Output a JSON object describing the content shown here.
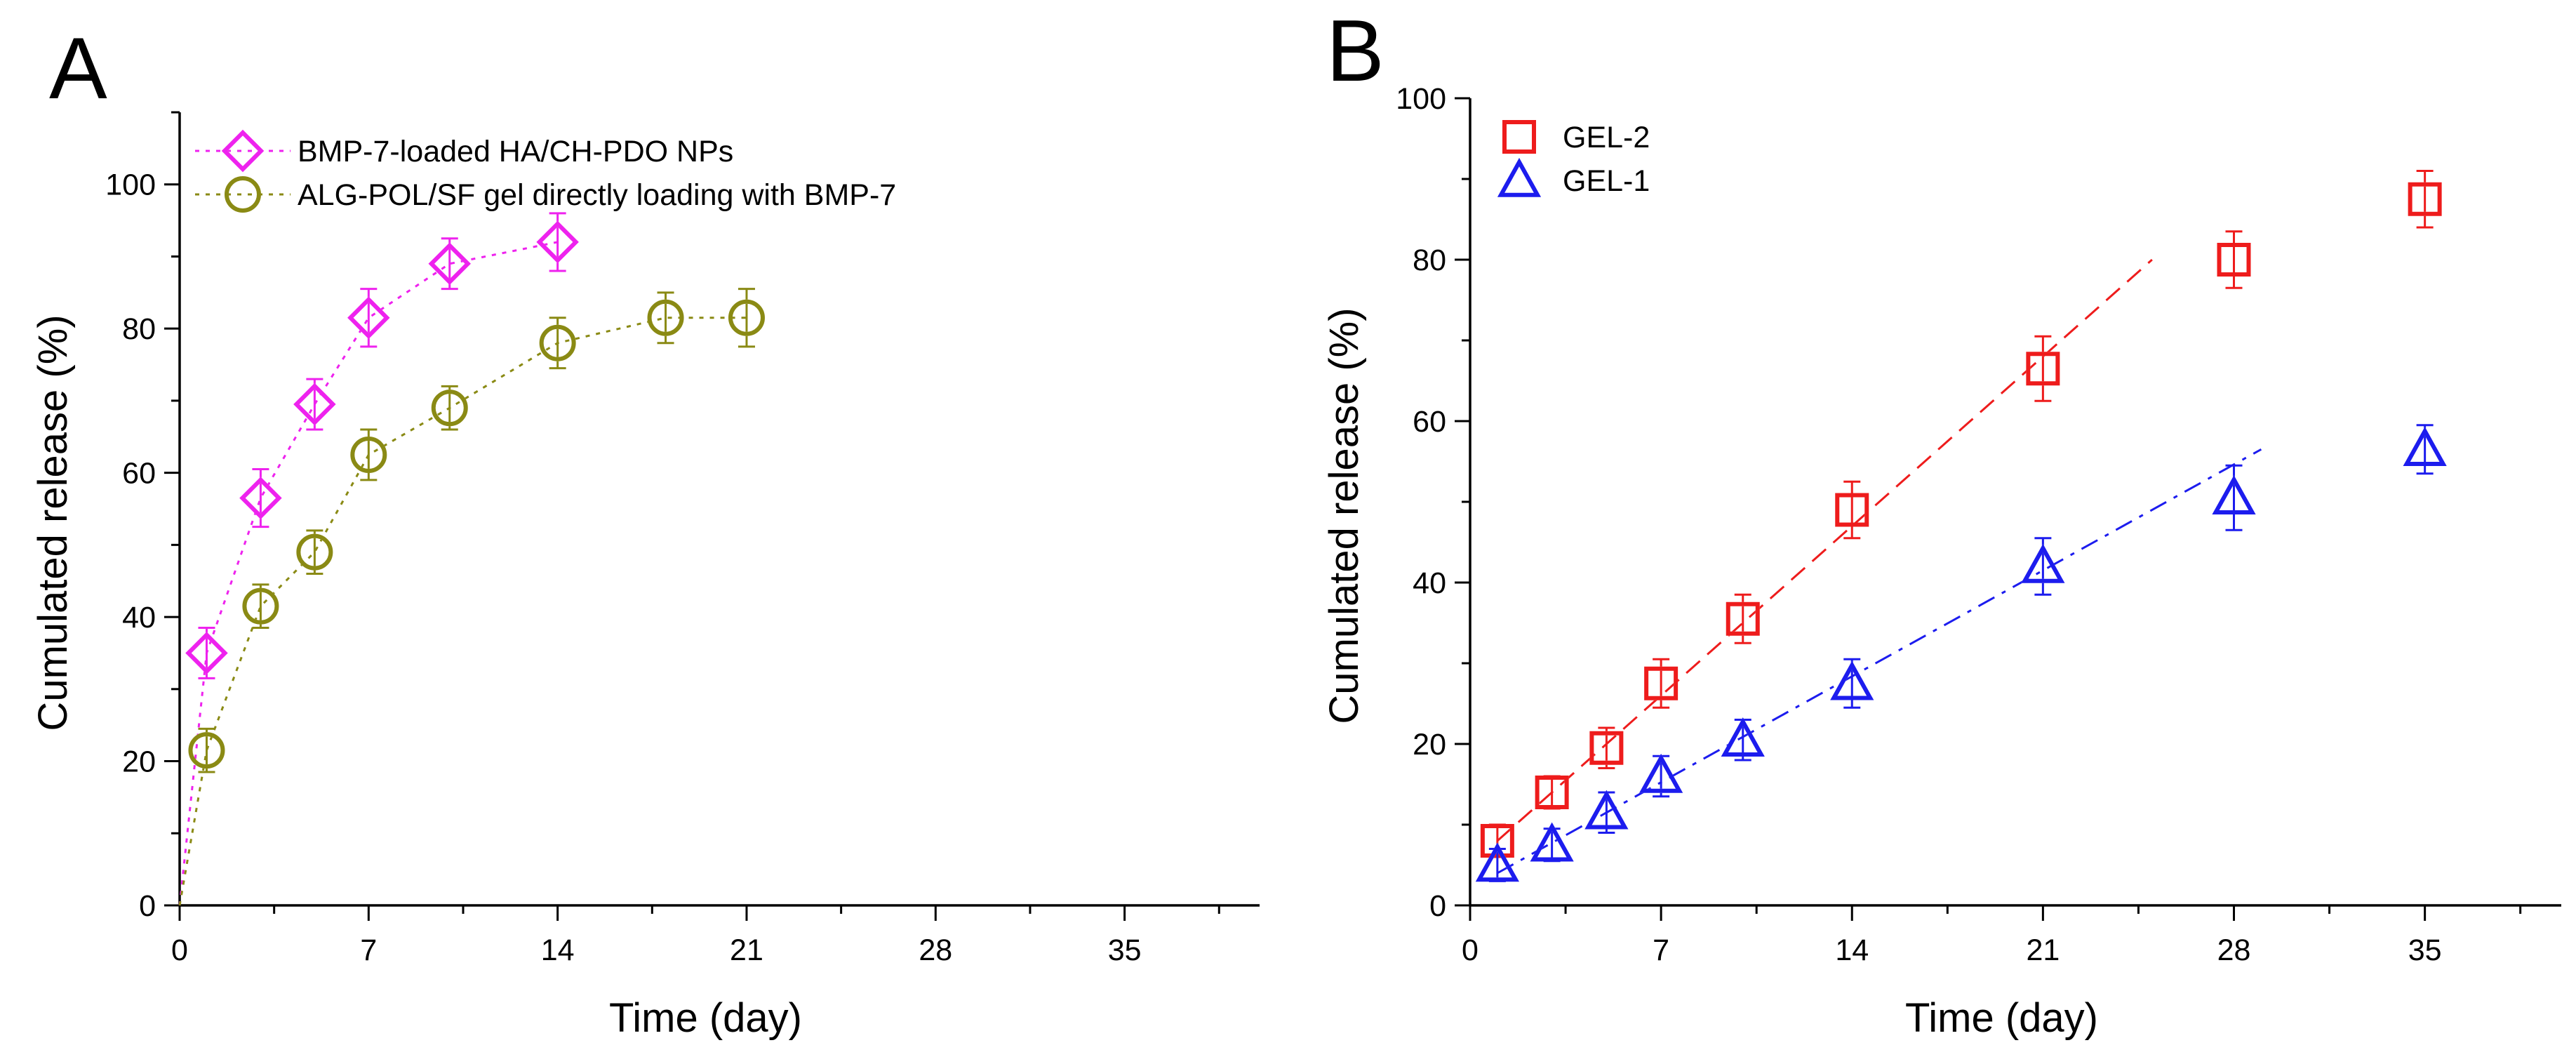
{
  "chart_data": [
    {
      "type": "scatter",
      "panel_label": "A",
      "xlabel": "Time (day)",
      "ylabel": "Cumulated release (%)",
      "xlim": [
        0,
        40
      ],
      "ylim": [
        0,
        110
      ],
      "xticks": [
        0,
        7,
        14,
        21,
        28,
        35
      ],
      "yticks": [
        0,
        20,
        40,
        60,
        80,
        100
      ],
      "grid": false,
      "legend_position": "top-left",
      "series": [
        {
          "name": "BMP-7-loaded HA/CH-PDO NPs",
          "marker": "diamond",
          "color": "#ee22ee",
          "line": "dotted",
          "x": [
            1,
            3,
            5,
            7,
            10,
            14
          ],
          "y": [
            35,
            56.5,
            69.5,
            81.5,
            89,
            92
          ],
          "err": [
            3.5,
            4,
            3.5,
            4,
            3.5,
            4
          ],
          "connect_from_origin": true
        },
        {
          "name": "ALG-POL/SF gel directly loading with BMP-7",
          "marker": "circle",
          "color": "#8a8a14",
          "line": "dotted",
          "x": [
            1,
            3,
            5,
            7,
            10,
            14,
            18,
            21
          ],
          "y": [
            21.5,
            41.5,
            49,
            62.5,
            69,
            78,
            81.5,
            81.5
          ],
          "err": [
            3,
            3,
            3,
            3.5,
            3,
            3.5,
            3.5,
            4
          ],
          "connect_from_origin": true
        }
      ]
    },
    {
      "type": "scatter",
      "panel_label": "B",
      "xlabel": "Time (day)",
      "ylabel": "Cumulated release (%)",
      "xlim": [
        0,
        40
      ],
      "ylim": [
        0,
        100
      ],
      "xticks": [
        0,
        7,
        14,
        21,
        28,
        35
      ],
      "yticks": [
        0,
        20,
        40,
        60,
        80,
        100
      ],
      "grid": false,
      "legend_position": "top-left",
      "series": [
        {
          "name": "GEL-2",
          "marker": "square",
          "color": "#ee1c1c",
          "line": "none",
          "x": [
            1,
            3,
            5,
            7,
            10,
            14,
            21,
            28,
            35
          ],
          "y": [
            8,
            14,
            19.5,
            27.5,
            35.5,
            49,
            66.5,
            80,
            87.5
          ],
          "err": [
            2,
            2,
            2.5,
            3,
            3,
            3.5,
            4,
            3.5,
            3.5
          ],
          "fit": {
            "style": "dashed",
            "x": [
              1,
              25
            ],
            "y": [
              8,
              80
            ]
          }
        },
        {
          "name": "GEL-1",
          "marker": "triangle",
          "color": "#1c1cee",
          "line": "none",
          "x": [
            1,
            3,
            5,
            7,
            10,
            14,
            21,
            28,
            35
          ],
          "y": [
            5,
            7.5,
            11.5,
            16,
            20.5,
            27.5,
            42,
            50.5,
            56.5
          ],
          "err": [
            2,
            2,
            2.5,
            2.5,
            2.5,
            3,
            3.5,
            4,
            3
          ],
          "fit": {
            "style": "dashdot",
            "x": [
              1,
              29
            ],
            "y": [
              4,
              56.5
            ]
          }
        }
      ]
    }
  ]
}
